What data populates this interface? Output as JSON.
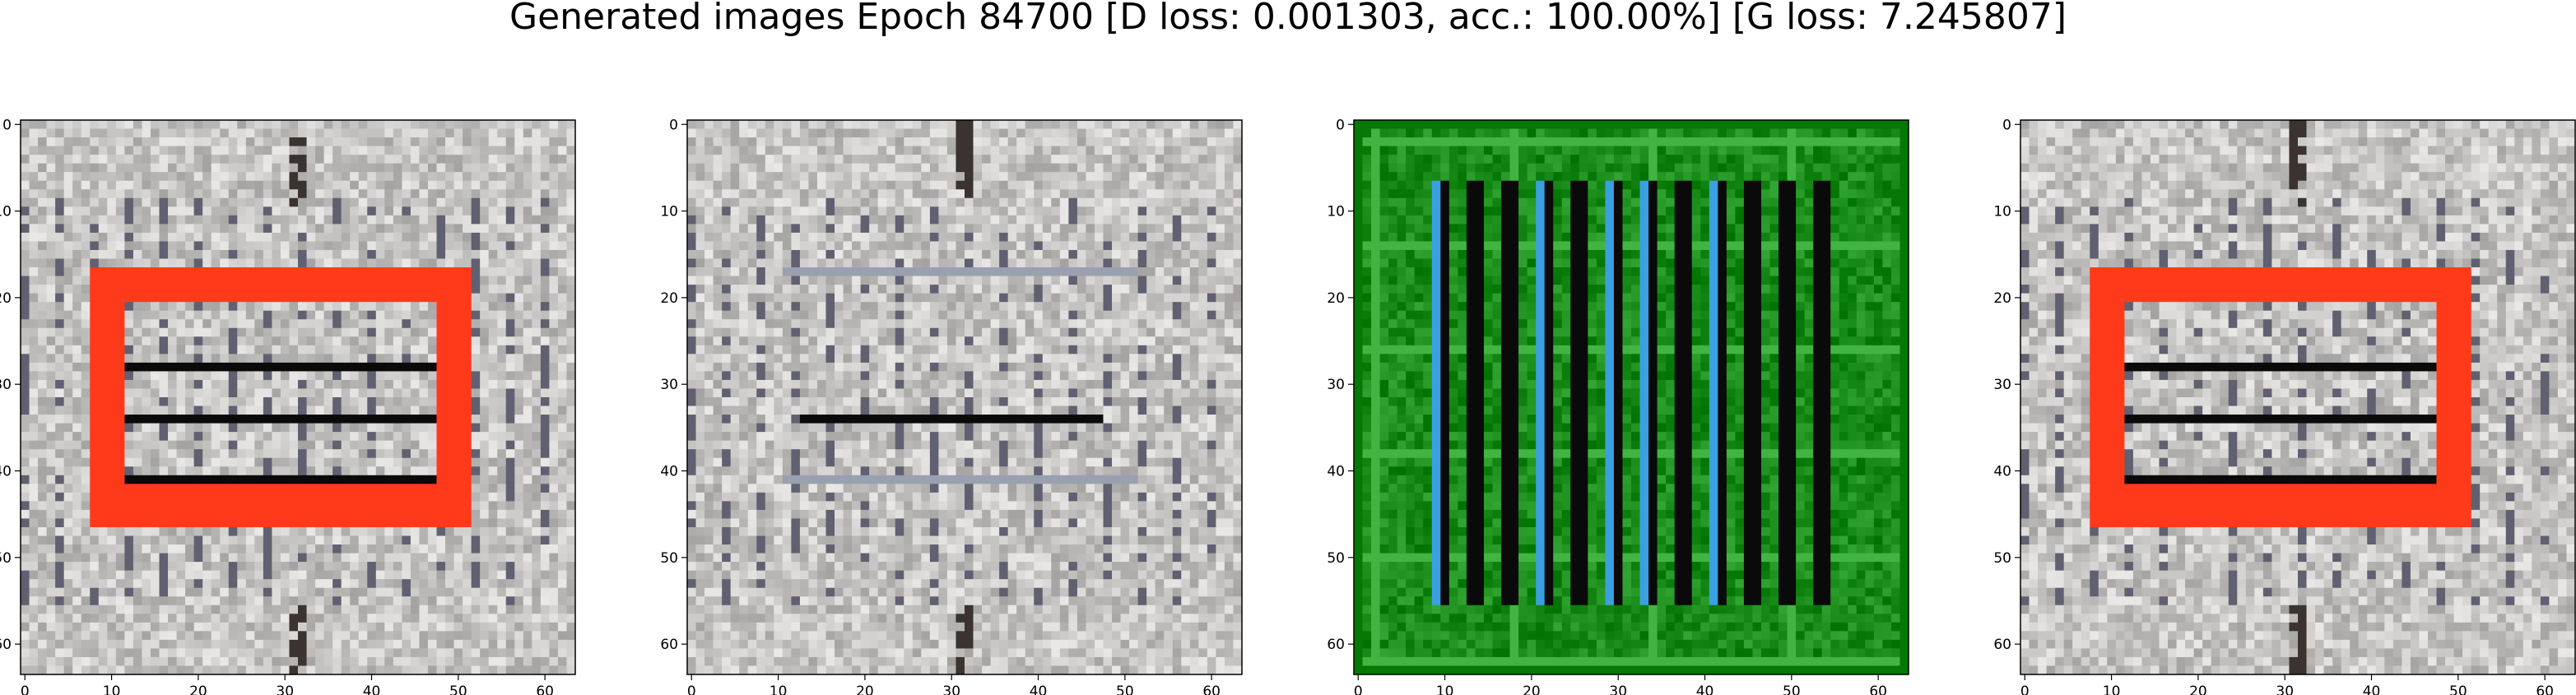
{
  "figure": {
    "title": "Generated images Epoch 84700 [D loss: 0.001303, acc.: 100.00%] [G loss: 7.245807]"
  },
  "axes": {
    "x_ticks": [
      "0",
      "10",
      "20",
      "30",
      "40",
      "50",
      "60"
    ],
    "y_ticks": [
      "0",
      "10",
      "20",
      "30",
      "40",
      "50",
      "60"
    ],
    "xlim": [
      -0.5,
      63.5
    ],
    "ylim": [
      63.5,
      -0.5
    ]
  },
  "panels": [
    {
      "id": "sample-1",
      "style": "red-frame"
    },
    {
      "id": "sample-2",
      "style": "washed"
    },
    {
      "id": "sample-3",
      "style": "green-bars"
    },
    {
      "id": "sample-4",
      "style": "red-frame"
    }
  ],
  "colors": {
    "red_frame": "#ff3a1a",
    "gray_bg": "#c8c6c4",
    "green_bg": "#1a8c1a",
    "blue_bar": "#3aa0e0",
    "dark": "#0a0a0a"
  }
}
